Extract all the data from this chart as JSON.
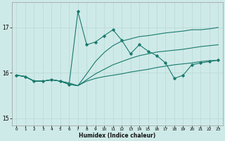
{
  "xlabel": "Humidex (Indice chaleur)",
  "bg_color": "#ceeae8",
  "grid_color": "#b8d8d5",
  "line_color": "#1a7a6e",
  "xlim": [
    -0.5,
    23.5
  ],
  "ylim": [
    14.85,
    17.55
  ],
  "yticks": [
    15,
    16,
    17
  ],
  "xticks": [
    0,
    1,
    2,
    3,
    4,
    5,
    6,
    7,
    8,
    9,
    10,
    11,
    12,
    13,
    14,
    15,
    16,
    17,
    18,
    19,
    20,
    21,
    22,
    23
  ],
  "line_marker_x": [
    0,
    1,
    2,
    3,
    4,
    5,
    6,
    7,
    8,
    9,
    10,
    11,
    12,
    13,
    14,
    15,
    16,
    17,
    18,
    19,
    20,
    21,
    22,
    23
  ],
  "line_marker_y": [
    15.95,
    15.92,
    15.82,
    15.82,
    15.85,
    15.82,
    15.75,
    17.35,
    16.62,
    16.68,
    16.82,
    16.95,
    16.72,
    16.42,
    16.62,
    16.48,
    16.38,
    16.22,
    15.88,
    15.95,
    16.18,
    16.22,
    16.25,
    16.28
  ],
  "line1_x": [
    0,
    1,
    2,
    3,
    4,
    5,
    6,
    7,
    8,
    9,
    10,
    11,
    12,
    13,
    14,
    15,
    16,
    17,
    18,
    19,
    20,
    21,
    22,
    23
  ],
  "line1_y": [
    15.95,
    15.92,
    15.82,
    15.82,
    15.85,
    15.82,
    15.75,
    15.72,
    15.82,
    15.88,
    15.92,
    15.95,
    15.98,
    16.02,
    16.05,
    16.08,
    16.12,
    16.15,
    16.18,
    16.2,
    16.22,
    16.25,
    16.27,
    16.28
  ],
  "line2_x": [
    0,
    1,
    2,
    3,
    4,
    5,
    6,
    7,
    8,
    9,
    10,
    11,
    12,
    13,
    14,
    15,
    16,
    17,
    18,
    19,
    20,
    21,
    22,
    23
  ],
  "line2_y": [
    15.95,
    15.92,
    15.82,
    15.82,
    15.85,
    15.82,
    15.75,
    15.72,
    15.85,
    15.98,
    16.08,
    16.18,
    16.25,
    16.32,
    16.38,
    16.42,
    16.46,
    16.48,
    16.5,
    16.52,
    16.55,
    16.58,
    16.6,
    16.62
  ],
  "line3_x": [
    0,
    1,
    2,
    3,
    4,
    5,
    6,
    7,
    8,
    9,
    10,
    11,
    12,
    13,
    14,
    15,
    16,
    17,
    18,
    19,
    20,
    21,
    22,
    23
  ],
  "line3_y": [
    15.95,
    15.92,
    15.82,
    15.82,
    15.85,
    15.82,
    15.78,
    15.72,
    15.98,
    16.25,
    16.45,
    16.6,
    16.7,
    16.75,
    16.8,
    16.82,
    16.85,
    16.88,
    16.9,
    16.92,
    16.95,
    16.95,
    16.97,
    17.0
  ]
}
